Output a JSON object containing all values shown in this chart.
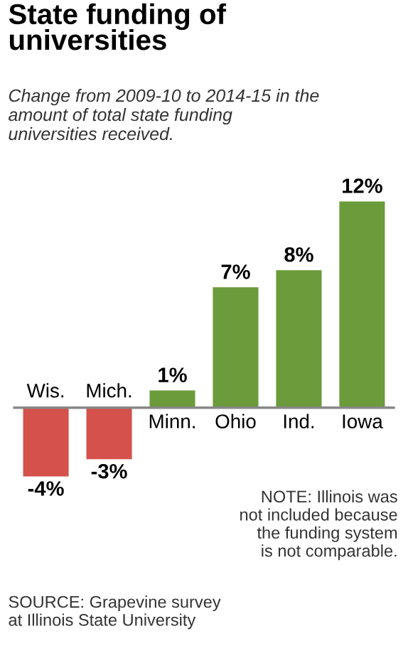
{
  "chart_data": {
    "type": "bar",
    "title": "State funding of\nuniversities",
    "subtitle": "Change from 2009-10 to 2014-15 in the\namount of total state funding\nuniversities received.",
    "categories": [
      "Wis.",
      "Mich.",
      "Minn.",
      "Ohio",
      "Ind.",
      "Iowa"
    ],
    "values": [
      -4,
      -3,
      1,
      7,
      8,
      12
    ],
    "colors": [
      "#d4524b",
      "#d4524b",
      "#6b9b3a",
      "#6b9b3a",
      "#6b9b3a",
      "#6b9b3a"
    ],
    "value_labels": [
      "-4%",
      "-3%",
      "1%",
      "7%",
      "8%",
      "12%"
    ],
    "annotations": [
      "NOTE: Illinois was\nnot included because\nthe funding system\nis not comparable.",
      "SOURCE: Grapevine survey\nat Illinois State University"
    ],
    "legend": false
  }
}
